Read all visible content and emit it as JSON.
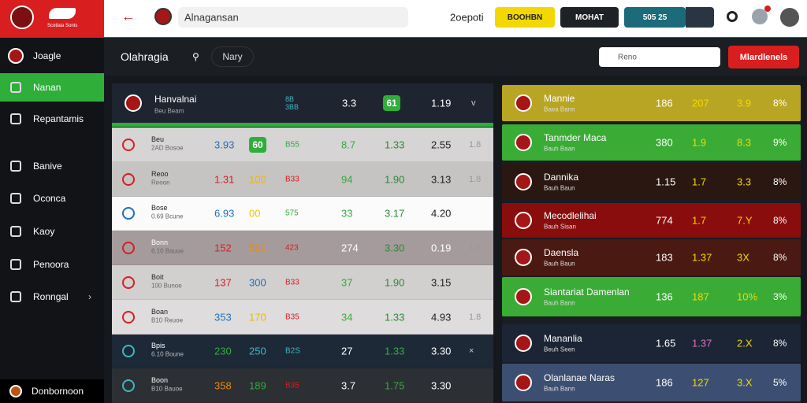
{
  "top_bar": {
    "logo_text": "Scotlaia Sonts",
    "search": "Alnagansan",
    "user": "2oepoti",
    "buttons": [
      "BOOHBN",
      "MOHAT",
      "505 25"
    ]
  },
  "sidebar": {
    "items": [
      "Joagle",
      "Nanan",
      "Repantamis",
      "Banive",
      "Oconca",
      "Kaoy",
      "Penoora",
      "Ronngal"
    ],
    "footer": "Donbornoon"
  },
  "header": {
    "title": "Olahragia",
    "filter": "Nary",
    "search": "Reno",
    "action": "Mlardlenels"
  },
  "table": {
    "header": [
      "Hanvalnai",
      "Beu Beam",
      "8B 3BB",
      "3.3",
      "61",
      "1.19",
      "v"
    ],
    "rows": [
      [
        "Beu",
        "2AD Bosoe",
        "3.93",
        "60",
        "B55",
        "8.7",
        "1.33",
        "2.55",
        "1.8"
      ],
      [
        "Reoo",
        "Reoon",
        "1.31",
        "100",
        "B33",
        "94",
        "1.90",
        "3.13",
        "1.8"
      ],
      [
        "Bose",
        "0.69 Bcune",
        "6.93",
        "00",
        "575",
        "33",
        "3.17",
        "4.20",
        ""
      ],
      [
        "Bonn",
        "6.10 Bauoe",
        "152",
        "580",
        "423",
        "274",
        "3.30",
        "0.19",
        "1.8"
      ],
      [
        "Boit",
        "100 Bunoe",
        "137",
        "300",
        "B33",
        "37",
        "1.90",
        "3.15",
        ""
      ],
      [
        "Boan",
        "B10 Reuoe",
        "353",
        "170",
        "B35",
        "34",
        "1.33",
        "4.93",
        "1.8"
      ],
      [
        "Bpis",
        "6.10 Boune",
        "230",
        "250",
        "B2S",
        "27",
        "1.33",
        "3.30",
        "×"
      ],
      [
        "Boon",
        "B10 Bauoe",
        "358",
        "189",
        "B35",
        "3.7",
        "1.75",
        "3.30",
        ""
      ]
    ]
  },
  "panel": {
    "rows": [
      [
        "Mannie",
        "Baea Bann",
        "186",
        "207",
        "3.9",
        "8%"
      ],
      [
        "Tanmder Maca",
        "Bauh Baan",
        "380",
        "1.9",
        "8.3",
        "9%"
      ],
      [
        "Dannika",
        "Bauh Baun",
        "1.15",
        "1.7",
        "3.3",
        "8%"
      ],
      [
        "Mecodlelihai",
        "Bauh Sisan",
        "774",
        "1.7",
        "7.Y",
        "8%"
      ],
      [
        "Daensla",
        "Bauh Baun",
        "183",
        "1.37",
        "3X",
        "8%"
      ],
      [
        "Siantariat Damenlan",
        "Bauh Bann",
        "136",
        "187",
        "10%",
        "3%"
      ],
      [
        "Mananlia",
        "Beuh Seen",
        "1.65",
        "1.37",
        "2.X",
        "8%"
      ],
      [
        "Olanlanae Naras",
        "Bauh Bann",
        "186",
        "127",
        "3.X",
        "5%"
      ]
    ]
  }
}
